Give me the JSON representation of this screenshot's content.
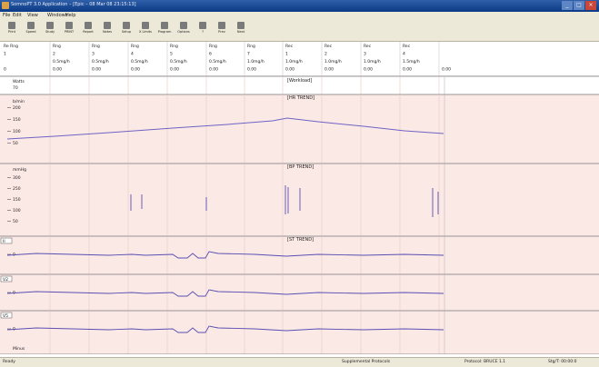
{
  "window": {
    "title": "SomnoPT 3.0 Application – [Epic – 08 Mar 08 23:15:13]"
  },
  "menu": [
    "File",
    "Edit",
    "View",
    "Windows",
    "Help"
  ],
  "toolbar": [
    {
      "label": "Print",
      "icon": "printer-icon"
    },
    {
      "label": "Speed",
      "icon": "speed-icon"
    },
    {
      "label": "Study",
      "icon": "study-icon"
    },
    {
      "label": "PRINT",
      "icon": "print-icon"
    },
    {
      "label": "Report",
      "icon": "report-icon"
    },
    {
      "label": "Notes",
      "icon": "notes-icon"
    },
    {
      "label": "Setup",
      "icon": "setup-icon"
    },
    {
      "label": "X Limits",
      "icon": "limits-icon"
    },
    {
      "label": "Program",
      "icon": "program-icon"
    },
    {
      "label": "Options",
      "icon": "options-icon"
    },
    {
      "label": "?",
      "icon": "help-icon"
    },
    {
      "label": "Prev",
      "icon": "prev-icon"
    },
    {
      "label": "Next",
      "icon": "next-icon"
    }
  ],
  "header_cols": [
    {
      "lines": [
        "Re Rng",
        "1",
        "",
        "0"
      ]
    },
    {
      "lines": [
        "Rng",
        "2",
        "0.5mg/h",
        "0.00"
      ]
    },
    {
      "lines": [
        "Rng",
        "3",
        "0.5mg/h",
        "0.00"
      ]
    },
    {
      "lines": [
        "Rng",
        "4",
        "0.5mg/h",
        "0.00"
      ]
    },
    {
      "lines": [
        "Rng",
        "5",
        "0.5mg/h",
        "0.00"
      ]
    },
    {
      "lines": [
        "Rng",
        "6",
        "0.5mg/h",
        "0.00"
      ]
    },
    {
      "lines": [
        "Rng",
        "7",
        "1.0mg/h",
        "0.00"
      ]
    },
    {
      "lines": [
        "Rec",
        "1",
        "1.0mg/h",
        "0.00"
      ]
    },
    {
      "lines": [
        "Rec",
        "2",
        "1.0mg/h",
        "0.00"
      ]
    },
    {
      "lines": [
        "Rec",
        "3",
        "1.0mg/h",
        "0.00"
      ]
    },
    {
      "lines": [
        "Rec",
        "4",
        "1.5mg/h",
        "0.00"
      ]
    },
    {
      "lines": [
        "",
        "",
        "",
        "0.00"
      ]
    }
  ],
  "panels": {
    "workload": {
      "title": "[Workload]",
      "label": "Watts",
      "value": "70"
    },
    "hr": {
      "title": "[HR TREND]",
      "unit": "b/min",
      "ticks": [
        "200",
        "150",
        "100",
        "50"
      ]
    },
    "bp": {
      "title": "[BP TREND]",
      "unit": "mmHg",
      "ticks": [
        "300",
        "250",
        "150",
        "100",
        "50"
      ]
    },
    "st": {
      "title": "[ST TREND]",
      "leads": [
        "II",
        "V2",
        "V5"
      ],
      "tick": "0"
    },
    "bottom_label": "Minus"
  },
  "status": {
    "left": "Ready",
    "middle": "Supplemental Protocols",
    "right1": "Protocol: BRUCE 1.1",
    "right2": "Stg/T: 00:00:0"
  },
  "colors": {
    "titlebar": "#0b3a86",
    "panel_bg": "#fbe9e6",
    "grid_line": "#e7c9c3",
    "trace": "#5a4fb2",
    "hr_trace": "#6e63c4"
  }
}
